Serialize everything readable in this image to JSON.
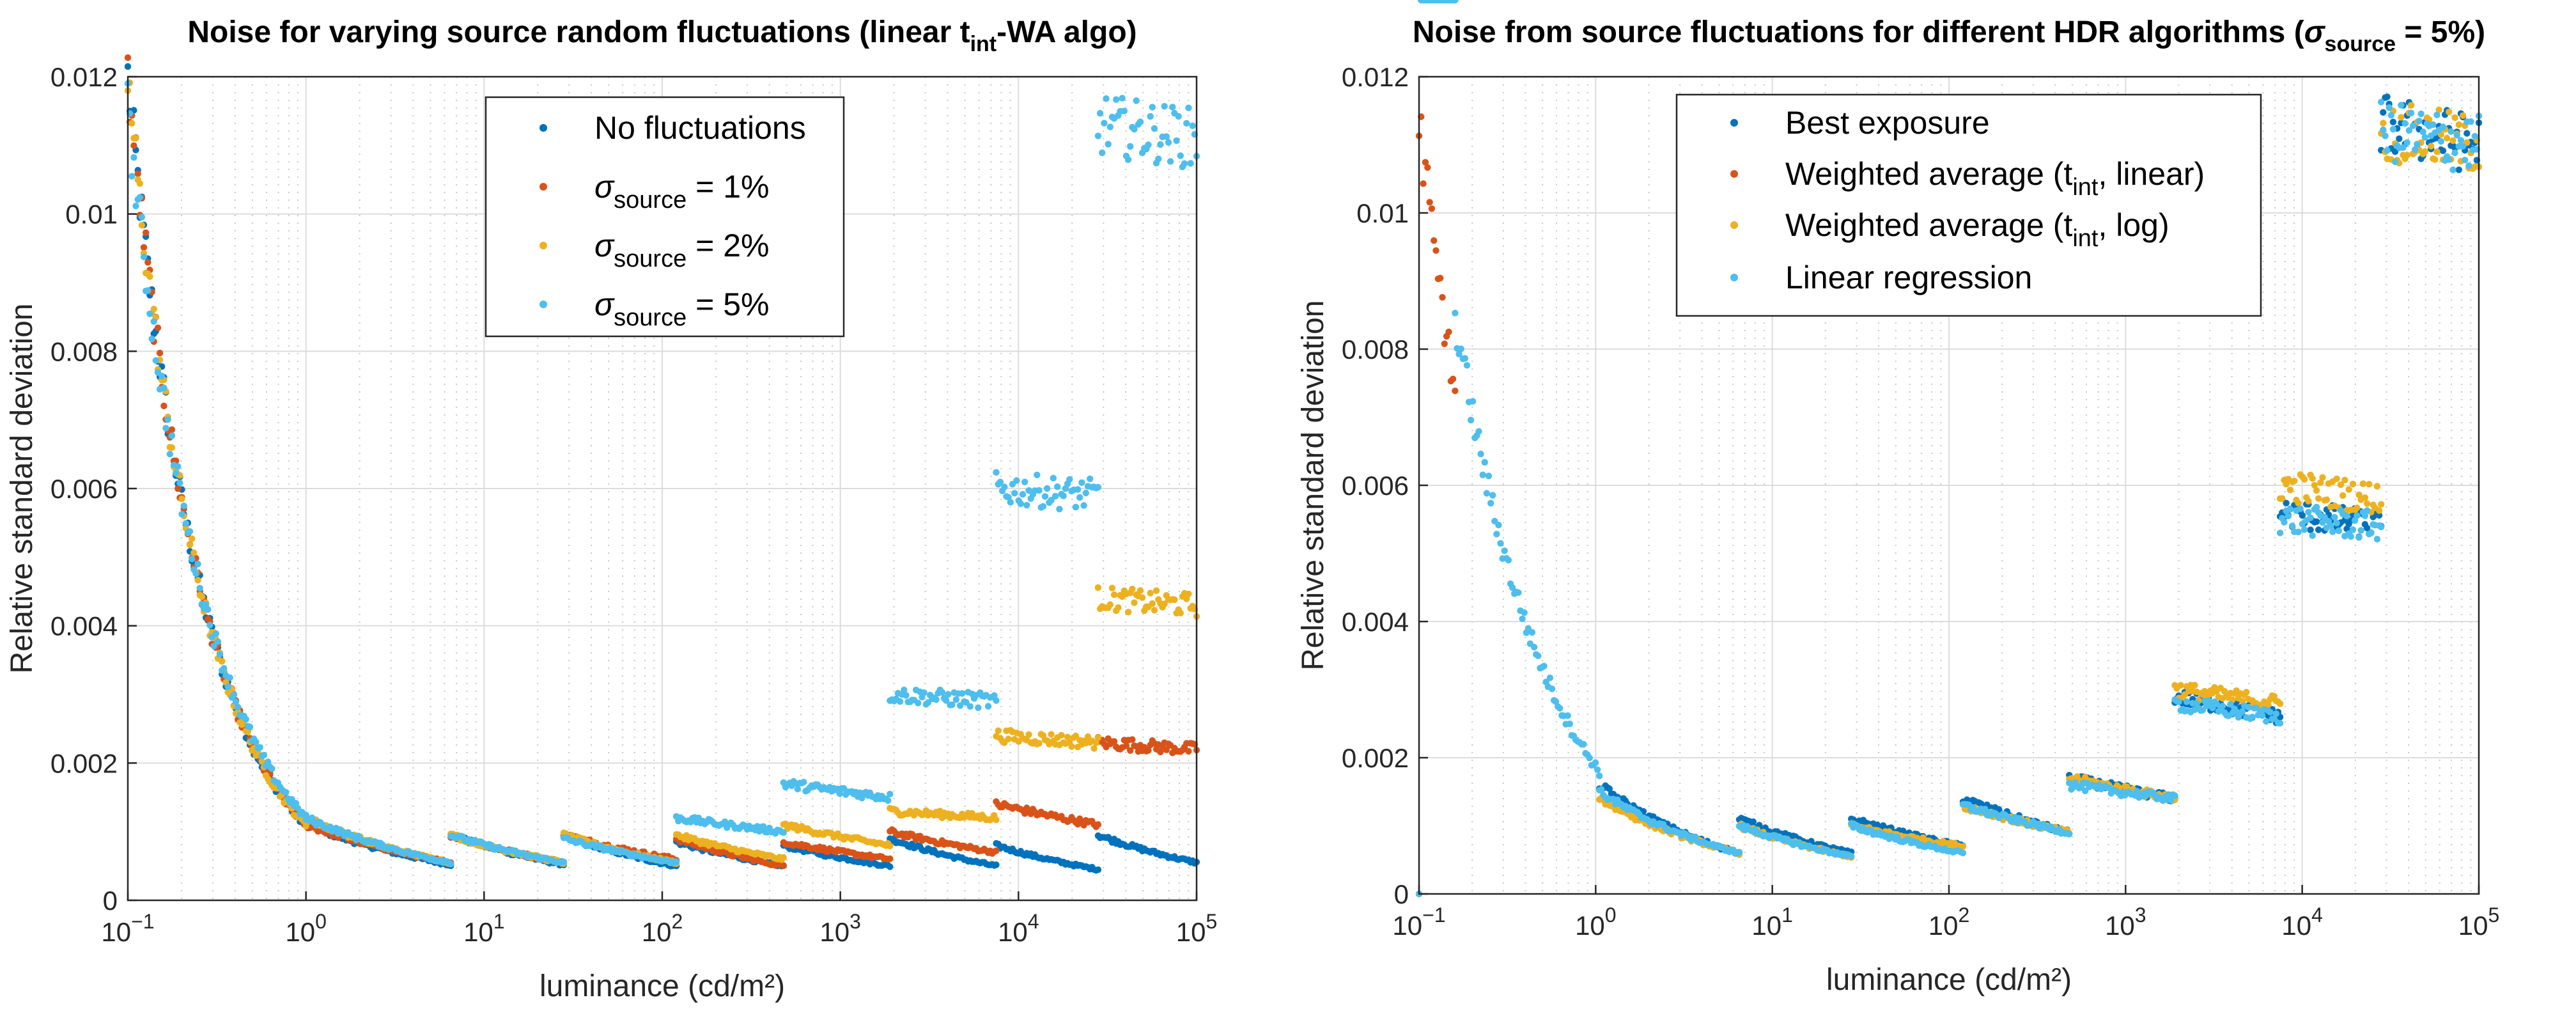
{
  "chart_data": [
    {
      "type": "scatter",
      "title": "Noise for varying source random fluctuations (linear t",
      "title_sub": "int",
      "title_end": "-WA algo)",
      "xlabel": "luminance (cd/m²)",
      "ylabel": "Relative standard deviation",
      "xscale": "log",
      "xlim": [
        0.1,
        100000
      ],
      "ylim": [
        0,
        0.012
      ],
      "xticks": [
        {
          "b": "10",
          "e": "−1"
        },
        {
          "b": "10",
          "e": "0"
        },
        {
          "b": "10",
          "e": "1"
        },
        {
          "b": "10",
          "e": "2"
        },
        {
          "b": "10",
          "e": "3"
        },
        {
          "b": "10",
          "e": "4"
        },
        {
          "b": "10",
          "e": "5"
        }
      ],
      "yticks": [
        "0",
        "0.002",
        "0.004",
        "0.006",
        "0.008",
        "0.01",
        "0.012"
      ],
      "grid": true,
      "legend_position": "top-right",
      "series": [
        {
          "name": "No fluctuations",
          "color": "#0072BD",
          "segments": [
            [
              0.1,
              0.012,
              1.0,
              0.0011
            ],
            [
              1.0,
              0.0011,
              6.5,
              0.00052
            ],
            [
              6.5,
              0.00095,
              28,
              0.00052
            ],
            [
              28,
              0.00095,
              120,
              0.0005
            ],
            [
              120,
              0.00085,
              480,
              0.0005
            ],
            [
              480,
              0.0008,
              1900,
              0.0005
            ],
            [
              1900,
              0.0009,
              7500,
              0.0005
            ],
            [
              7500,
              0.0008,
              28000,
              0.00045
            ],
            [
              28000,
              0.00095,
              100000,
              0.00055
            ]
          ]
        },
        {
          "name": "source = 1%",
          "label_prefix": "σ",
          "label_sub": "source",
          "label_suffix": " = 1%",
          "color": "#D95319",
          "segments": [
            [
              0.1,
              0.012,
              1.0,
              0.0011
            ],
            [
              1.0,
              0.0011,
              6.5,
              0.00055
            ],
            [
              6.5,
              0.00095,
              28,
              0.00055
            ],
            [
              28,
              0.00095,
              120,
              0.0006
            ],
            [
              120,
              0.0009,
              480,
              0.0005
            ],
            [
              480,
              0.00085,
              1900,
              0.0006
            ],
            [
              1900,
              0.001,
              7500,
              0.0007
            ],
            [
              7500,
              0.0014,
              28000,
              0.0011
            ],
            [
              28000,
              0.0023,
              100000,
              0.0022
            ]
          ]
        },
        {
          "name": "source = 2%",
          "label_prefix": "σ",
          "label_sub": "source",
          "label_suffix": " = 2%",
          "color": "#EDB120",
          "segments": [
            [
              0.1,
              0.012,
              1.0,
              0.0011
            ],
            [
              1.0,
              0.0012,
              6.5,
              0.00055
            ],
            [
              6.5,
              0.00095,
              28,
              0.00055
            ],
            [
              28,
              0.00095,
              120,
              0.00055
            ],
            [
              120,
              0.00095,
              480,
              0.0006
            ],
            [
              480,
              0.0011,
              1900,
              0.0008
            ],
            [
              1900,
              0.0013,
              7500,
              0.0012
            ],
            [
              7500,
              0.0024,
              28000,
              0.0023
            ],
            [
              28000,
              0.0044,
              100000,
              0.0043
            ]
          ]
        },
        {
          "name": "source = 5%",
          "label_prefix": "σ",
          "label_sub": "source",
          "label_suffix": " = 5%",
          "color": "#4DBEEE",
          "segments": [
            [
              0.1,
              0.0115,
              1.0,
              0.0012
            ],
            [
              1.0,
              0.0012,
              6.5,
              0.00055
            ],
            [
              6.5,
              0.00095,
              28,
              0.00055
            ],
            [
              28,
              0.0009,
              120,
              0.00055
            ],
            [
              120,
              0.0012,
              480,
              0.001
            ],
            [
              480,
              0.0017,
              1900,
              0.0015
            ],
            [
              1900,
              0.003,
              7500,
              0.0029
            ],
            [
              7500,
              0.006,
              28000,
              0.0059
            ],
            [
              28000,
              0.0113,
              100000,
              0.0111
            ]
          ]
        }
      ]
    },
    {
      "type": "scatter",
      "title": "Noise from source fluctuations for different HDR algorithms (",
      "title_sigma": "σ",
      "title_sub": "source",
      "title_end": " = 5%)",
      "xlabel": "luminance (cd/m²)",
      "ylabel": "Relative standard deviation",
      "xscale": "log",
      "xlim": [
        0.1,
        100000
      ],
      "ylim": [
        0,
        0.012
      ],
      "xticks": [
        {
          "b": "10",
          "e": "−1"
        },
        {
          "b": "10",
          "e": "0"
        },
        {
          "b": "10",
          "e": "1"
        },
        {
          "b": "10",
          "e": "2"
        },
        {
          "b": "10",
          "e": "3"
        },
        {
          "b": "10",
          "e": "4"
        },
        {
          "b": "10",
          "e": "5"
        }
      ],
      "yticks": [
        "0",
        "0.002",
        "0.004",
        "0.006",
        "0.008",
        "0.01",
        "0.012"
      ],
      "grid": true,
      "legend_position": "top-center",
      "series": [
        {
          "name": "Best exposure",
          "color": "#0072BD",
          "segments": [
            [
              0.1,
              0.0,
              0.16,
              0.0
            ],
            [
              1.05,
              0.0016,
              6.5,
              0.0006
            ],
            [
              6.5,
              0.0011,
              28,
              0.0006
            ],
            [
              28,
              0.0011,
              120,
              0.0007
            ],
            [
              120,
              0.0014,
              480,
              0.0009
            ],
            [
              480,
              0.0017,
              1900,
              0.0014
            ],
            [
              1900,
              0.0029,
              7500,
              0.0026
            ],
            [
              7500,
              0.0056,
              28000,
              0.0054
            ],
            [
              28000,
              0.0113,
              100000,
              0.011
            ]
          ]
        },
        {
          "name": "Weighted average (tint, linear)",
          "label_prefix": "Weighted average (t",
          "label_sub": "int",
          "label_suffix": ", linear)",
          "color": "#D95319",
          "segments": [
            [
              0.1,
              0.0114,
              0.16,
              0.0074
            ]
          ]
        },
        {
          "name": "Weighted average (tint, log)",
          "label_prefix": "Weighted average (t",
          "label_sub": "int",
          "label_suffix": ", log)",
          "color": "#EDB120",
          "segments": [
            [
              0.1,
              0.0,
              0.16,
              0.0
            ],
            [
              1.05,
              0.0014,
              6.5,
              0.0006
            ],
            [
              6.5,
              0.001,
              28,
              0.00055
            ],
            [
              28,
              0.001,
              120,
              0.0007
            ],
            [
              120,
              0.0013,
              480,
              0.0009
            ],
            [
              480,
              0.0017,
              1900,
              0.0014
            ],
            [
              1900,
              0.003,
              7500,
              0.0028
            ],
            [
              7500,
              0.006,
              28000,
              0.0058
            ],
            [
              28000,
              0.0112,
              100000,
              0.011
            ]
          ]
        },
        {
          "name": "Linear regression",
          "color": "#4DBEEE",
          "segments": [
            [
              0.1,
              0.0,
              0.16,
              0.0
            ],
            [
              0.16,
              0.0085,
              1.05,
              0.0018
            ],
            [
              1.05,
              0.0015,
              6.5,
              0.0006
            ],
            [
              6.5,
              0.001,
              28,
              0.00055
            ],
            [
              28,
              0.001,
              120,
              0.0006
            ],
            [
              120,
              0.0013,
              480,
              0.0009
            ],
            [
              480,
              0.0016,
              1900,
              0.0014
            ],
            [
              1900,
              0.0028,
              7500,
              0.0026
            ],
            [
              7500,
              0.0055,
              28000,
              0.0054
            ],
            [
              28000,
              0.0112,
              100000,
              0.011
            ]
          ]
        }
      ]
    }
  ]
}
